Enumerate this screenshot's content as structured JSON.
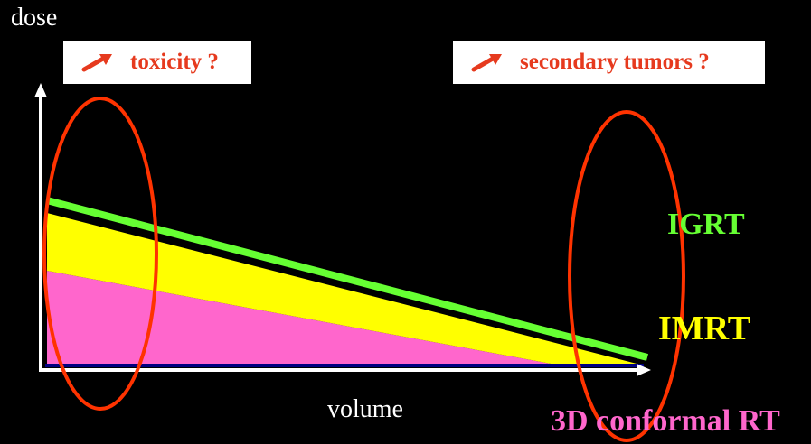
{
  "axes": {
    "y_label": "dose",
    "x_label": "volume"
  },
  "callouts": {
    "left": {
      "icon": "arrow-up-right-icon",
      "text": "toxicity ?"
    },
    "right": {
      "icon": "arrow-up-right-icon",
      "text": "secondary tumors ?"
    }
  },
  "series": {
    "igrt": {
      "label": "IGRT",
      "color": "#66ff33"
    },
    "imrt": {
      "label": "IMRT",
      "color": "#ffff00"
    },
    "conformal": {
      "label": "3D conformal RT",
      "color": "#ff66cc"
    }
  },
  "highlight_color": "#ff3300",
  "axis_color": "#ffffff",
  "baseline_color": "#000080"
}
